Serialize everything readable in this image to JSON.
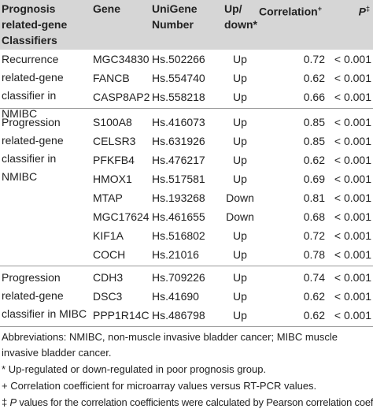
{
  "header": [
    {
      "text": "Prognosis related-gene Classifiers"
    },
    {
      "text": "Gene"
    },
    {
      "text": "UniGene Number"
    },
    {
      "text": "Up/ down*"
    },
    {
      "text": "Correlation",
      "sup": "+"
    },
    {
      "text": "P",
      "sup": "‡"
    }
  ],
  "groups": [
    {
      "label": "Recurrence related-gene classifier in NMIBC",
      "rows": [
        [
          "MGC34830",
          "Hs.502266",
          "Up",
          0.72,
          "< 0.001"
        ],
        [
          "FANCB",
          "Hs.554740",
          "Up",
          0.62,
          "< 0.001"
        ],
        [
          "CASP8AP2",
          "Hs.558218",
          "Up",
          0.66,
          "< 0.001"
        ]
      ]
    },
    {
      "label": "Progression related-gene classifier in NMIBC",
      "rows": [
        [
          "S100A8",
          "Hs.416073",
          "Up",
          0.85,
          "< 0.001"
        ],
        [
          "CELSR3",
          "Hs.631926",
          "Up",
          0.85,
          "< 0.001"
        ],
        [
          "PFKFB4",
          "Hs.476217",
          "Up",
          0.62,
          "< 0.001"
        ],
        [
          "HMOX1",
          "Hs.517581",
          "Up",
          0.69,
          "< 0.001"
        ],
        [
          "MTAP",
          "Hs.193268",
          "Down",
          0.81,
          "< 0.001"
        ],
        [
          "MGC17624",
          "Hs.461655",
          "Down",
          0.68,
          "< 0.001"
        ],
        [
          "KIF1A",
          "Hs.516802",
          "Up",
          0.72,
          "< 0.001"
        ],
        [
          "COCH",
          "Hs.21016",
          "Up",
          0.78,
          "< 0.001"
        ]
      ]
    },
    {
      "label": "Progression related-gene classifier in MIBC",
      "rows": [
        [
          "CDH3",
          "Hs.709226",
          "Up",
          0.74,
          "< 0.001"
        ],
        [
          "DSC3",
          "Hs.41690",
          "Up",
          0.62,
          "< 0.001"
        ],
        [
          "PPP1R14C",
          "Hs.486798",
          "Up",
          0.62,
          "< 0.001"
        ]
      ]
    }
  ],
  "footnotes": [
    {
      "text": "Abbreviations: NMIBC, non-muscle invasive bladder cancer; MIBC muscle invasive bladder cancer."
    },
    {
      "mark": "*",
      "text": "Up-regulated or down-regulated in poor prognosis group."
    },
    {
      "mark": "+",
      "text": "Correlation coefficient for microarray values versus RT-PCR values."
    },
    {
      "mark": "‡",
      "italic": "P",
      "text": "values for the correlation coefficients were calculated by Pearson correlation coefficient test."
    }
  ]
}
